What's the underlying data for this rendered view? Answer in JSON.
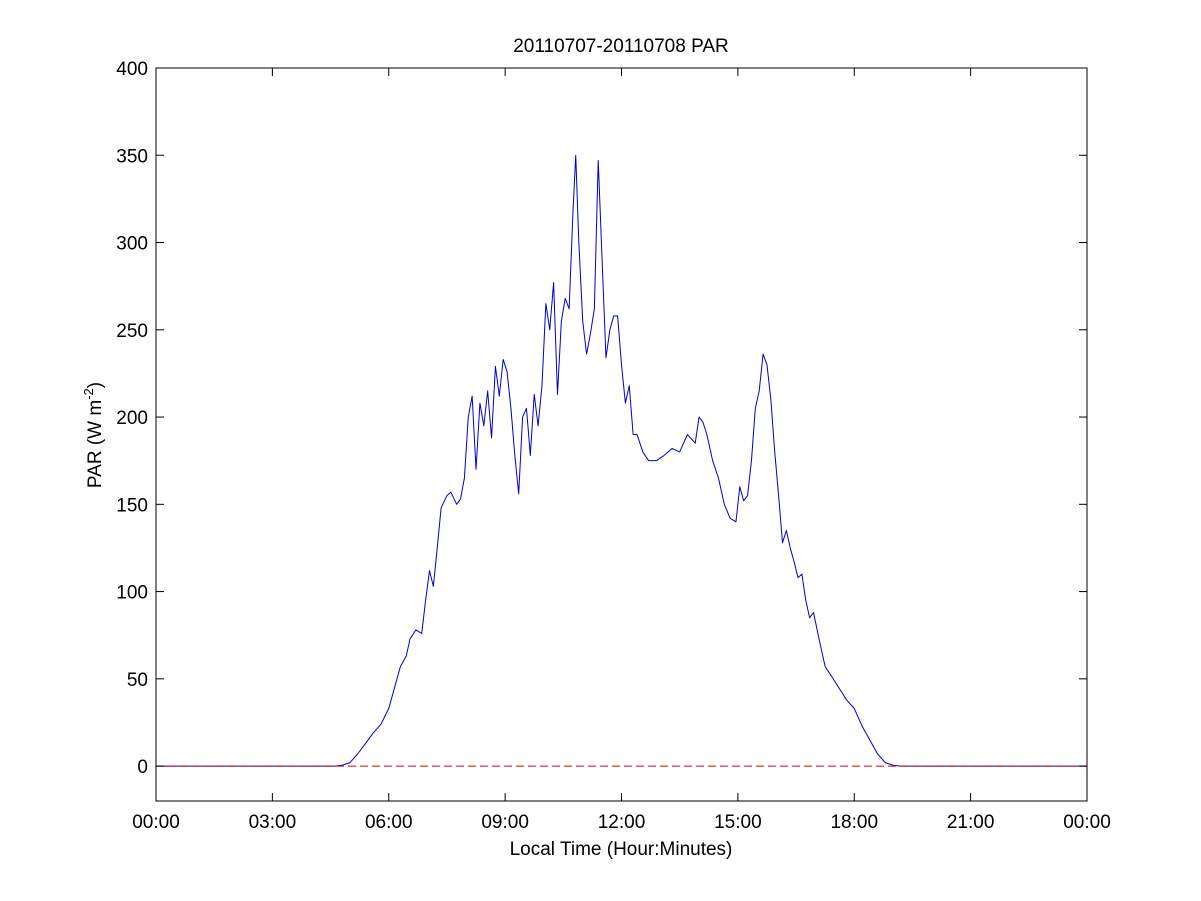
{
  "chart_data": {
    "type": "line",
    "title": "20110707-20110708 PAR",
    "xlabel": "Local Time (Hour:Minutes)",
    "ylabel_main": "PAR (W m",
    "ylabel_sup": "-2",
    "ylabel_end": ")",
    "xlim": [
      0,
      24
    ],
    "ylim": [
      -20,
      400
    ],
    "grid": false,
    "x_ticks": [
      {
        "value": 0,
        "label": "00:00"
      },
      {
        "value": 3,
        "label": "03:00"
      },
      {
        "value": 6,
        "label": "06:00"
      },
      {
        "value": 9,
        "label": "09:00"
      },
      {
        "value": 12,
        "label": "12:00"
      },
      {
        "value": 15,
        "label": "15:00"
      },
      {
        "value": 18,
        "label": "18:00"
      },
      {
        "value": 21,
        "label": "21:00"
      },
      {
        "value": 24,
        "label": "00:00"
      }
    ],
    "y_ticks": [
      {
        "value": 0,
        "label": "0"
      },
      {
        "value": 50,
        "label": "50"
      },
      {
        "value": 100,
        "label": "100"
      },
      {
        "value": 150,
        "label": "150"
      },
      {
        "value": 200,
        "label": "200"
      },
      {
        "value": 250,
        "label": "250"
      },
      {
        "value": 300,
        "label": "300"
      },
      {
        "value": 350,
        "label": "350"
      },
      {
        "value": 400,
        "label": "400"
      }
    ],
    "series": [
      {
        "color": "#0000cc",
        "style": "solid",
        "points": [
          [
            0,
            0
          ],
          [
            4.6,
            0
          ],
          [
            4.8,
            0.5
          ],
          [
            5.0,
            2
          ],
          [
            5.2,
            7
          ],
          [
            5.4,
            13
          ],
          [
            5.6,
            19
          ],
          [
            5.8,
            24
          ],
          [
            6.0,
            33
          ],
          [
            6.15,
            45
          ],
          [
            6.3,
            57
          ],
          [
            6.45,
            63
          ],
          [
            6.55,
            73
          ],
          [
            6.7,
            78
          ],
          [
            6.85,
            76
          ],
          [
            6.95,
            95
          ],
          [
            7.05,
            112
          ],
          [
            7.15,
            103
          ],
          [
            7.25,
            125
          ],
          [
            7.35,
            148
          ],
          [
            7.5,
            155
          ],
          [
            7.6,
            157
          ],
          [
            7.75,
            150
          ],
          [
            7.85,
            153
          ],
          [
            7.95,
            165
          ],
          [
            8.05,
            200
          ],
          [
            8.15,
            212
          ],
          [
            8.25,
            170
          ],
          [
            8.35,
            208
          ],
          [
            8.45,
            195
          ],
          [
            8.55,
            215
          ],
          [
            8.65,
            188
          ],
          [
            8.75,
            229
          ],
          [
            8.85,
            212
          ],
          [
            8.95,
            233
          ],
          [
            9.05,
            226
          ],
          [
            9.15,
            205
          ],
          [
            9.25,
            178
          ],
          [
            9.35,
            156
          ],
          [
            9.45,
            200
          ],
          [
            9.55,
            205
          ],
          [
            9.65,
            178
          ],
          [
            9.75,
            213
          ],
          [
            9.85,
            195
          ],
          [
            9.95,
            218
          ],
          [
            10.05,
            265
          ],
          [
            10.15,
            250
          ],
          [
            10.25,
            277
          ],
          [
            10.35,
            213
          ],
          [
            10.45,
            255
          ],
          [
            10.55,
            268
          ],
          [
            10.65,
            262
          ],
          [
            10.75,
            318
          ],
          [
            10.82,
            350
          ],
          [
            10.9,
            300
          ],
          [
            11.0,
            255
          ],
          [
            11.1,
            236
          ],
          [
            11.2,
            248
          ],
          [
            11.3,
            262
          ],
          [
            11.4,
            347
          ],
          [
            11.5,
            290
          ],
          [
            11.6,
            234
          ],
          [
            11.7,
            250
          ],
          [
            11.8,
            258
          ],
          [
            11.9,
            258
          ],
          [
            12.0,
            230
          ],
          [
            12.1,
            208
          ],
          [
            12.2,
            218
          ],
          [
            12.3,
            190
          ],
          [
            12.4,
            190
          ],
          [
            12.55,
            180
          ],
          [
            12.7,
            175
          ],
          [
            12.9,
            175
          ],
          [
            13.1,
            178
          ],
          [
            13.3,
            182
          ],
          [
            13.5,
            180
          ],
          [
            13.7,
            190
          ],
          [
            13.9,
            185
          ],
          [
            14.0,
            200
          ],
          [
            14.1,
            197
          ],
          [
            14.2,
            190
          ],
          [
            14.35,
            175
          ],
          [
            14.5,
            165
          ],
          [
            14.65,
            150
          ],
          [
            14.8,
            142
          ],
          [
            14.95,
            140
          ],
          [
            15.05,
            160
          ],
          [
            15.15,
            152
          ],
          [
            15.25,
            155
          ],
          [
            15.35,
            175
          ],
          [
            15.45,
            205
          ],
          [
            15.55,
            215
          ],
          [
            15.65,
            236
          ],
          [
            15.75,
            230
          ],
          [
            15.85,
            210
          ],
          [
            15.95,
            180
          ],
          [
            16.05,
            155
          ],
          [
            16.15,
            128
          ],
          [
            16.25,
            135
          ],
          [
            16.35,
            125
          ],
          [
            16.45,
            117
          ],
          [
            16.55,
            108
          ],
          [
            16.65,
            110
          ],
          [
            16.75,
            95
          ],
          [
            16.85,
            85
          ],
          [
            16.95,
            88
          ],
          [
            17.1,
            72
          ],
          [
            17.25,
            57
          ],
          [
            17.4,
            52
          ],
          [
            17.6,
            45
          ],
          [
            17.8,
            38
          ],
          [
            18.0,
            33
          ],
          [
            18.2,
            23
          ],
          [
            18.4,
            15
          ],
          [
            18.6,
            7
          ],
          [
            18.8,
            2
          ],
          [
            19.0,
            0.5
          ],
          [
            19.2,
            0
          ],
          [
            24,
            0
          ]
        ]
      },
      {
        "color": "#e00000",
        "style": "dashed",
        "points": [
          [
            0,
            0
          ],
          [
            24,
            0
          ]
        ]
      }
    ]
  }
}
